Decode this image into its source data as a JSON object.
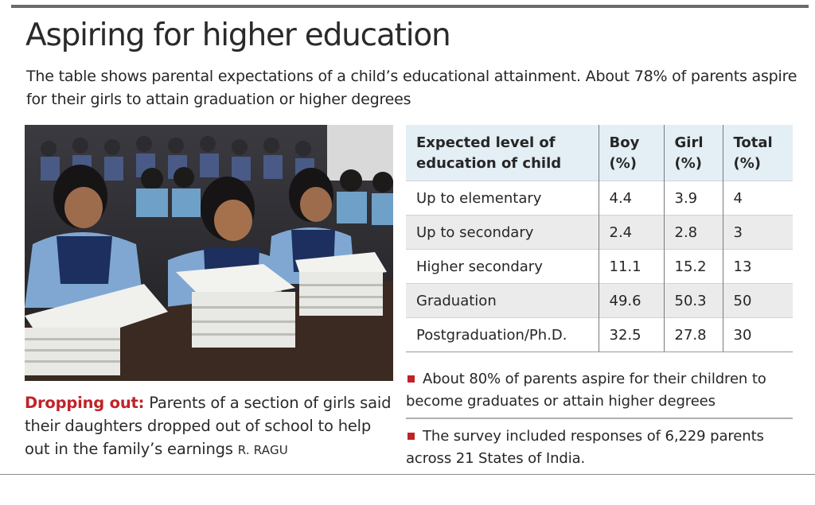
{
  "header": {
    "title": "Aspiring for higher education",
    "subtitle": "The table shows parental expectations of a child’s educational attainment. About 78% of parents aspire for their girls to attain graduation or higher degrees"
  },
  "photo": {
    "subject": "schoolgirls-reading-books"
  },
  "caption": {
    "lead": "Dropping out:",
    "text": " Parents of a section of girls said their daughters dropped out of school to help out in the family’s earnings ",
    "credit": "R. RAGU"
  },
  "table": {
    "headers": [
      "Expected level of education of child",
      "Boy (%)",
      "Girl (%)",
      "Total (%)"
    ],
    "rows": [
      [
        "Up to elementary",
        "4.4",
        "3.9",
        "4"
      ],
      [
        "Up to secondary",
        "2.4",
        "2.8",
        "3"
      ],
      [
        "Higher secondary",
        "11.1",
        "15.2",
        "13"
      ],
      [
        "Graduation",
        "49.6",
        "50.3",
        "50"
      ],
      [
        "Postgraduation/Ph.D.",
        "32.5",
        "27.8",
        "30"
      ]
    ]
  },
  "notes": [
    "About 80% of parents aspire for their children to become graduates or attain higher degrees",
    "The survey included responses of 6,229 parents across 21 States of India."
  ],
  "colors": {
    "accent": "#c0232a",
    "table_header_bg": "#e4eef5",
    "table_row_alt": "#ebebeb"
  }
}
